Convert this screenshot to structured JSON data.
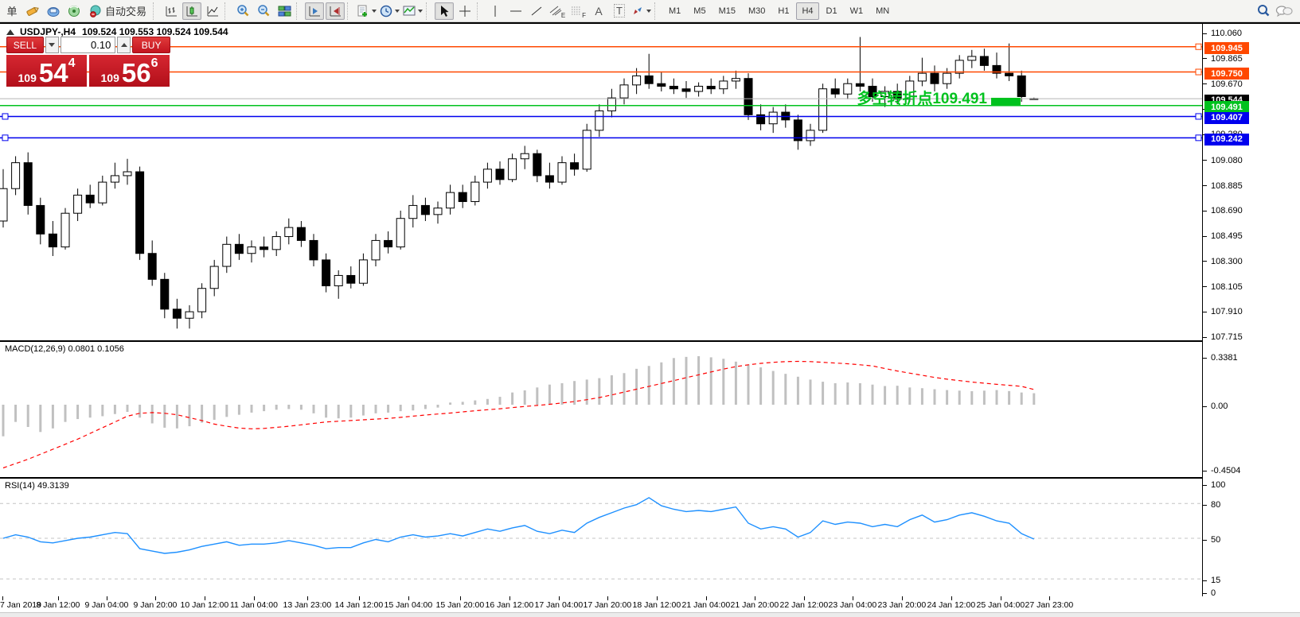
{
  "toolbar": {
    "new_order_partial": "单",
    "autotrading_label": "自动交易",
    "timeframes": [
      "M1",
      "M5",
      "M15",
      "M30",
      "H1",
      "H4",
      "D1",
      "W1",
      "MN"
    ],
    "active_timeframe": "H4",
    "tool_letters": {
      "channel": "E",
      "fibonacci": "F",
      "text": "A",
      "label": "T"
    }
  },
  "chart_header": {
    "symbol_period": "USDJPY-,H4",
    "quote": "109.524 109.553 109.524 109.544"
  },
  "trade_panel": {
    "sell_label": "SELL",
    "buy_label": "BUY",
    "volume": "0.10",
    "sell_price_prefix": "109",
    "sell_price_big": "54",
    "sell_price_sup": "4",
    "buy_price_prefix": "109",
    "buy_price_big": "56",
    "buy_price_sup": "6"
  },
  "annotation": {
    "text": "多空转折点109.491",
    "color": "#00C21E"
  },
  "indicator_labels": {
    "macd": "MACD(12,26,9) 0.0801 0.1056",
    "rsi": "RSI(14) 49.3139"
  },
  "price_axis": {
    "ticks": [
      "110.060",
      "109.865",
      "109.670",
      "109.475",
      "109.280",
      "109.080",
      "108.885",
      "108.690",
      "108.495",
      "108.300",
      "108.105",
      "107.910",
      "107.715"
    ],
    "badges": [
      {
        "label": "109.945",
        "color": "#FF4800"
      },
      {
        "label": "109.750",
        "color": "#FF4800"
      },
      {
        "label": "109.544",
        "color": "#000000"
      },
      {
        "label": "109.491",
        "color": "#00C21E"
      },
      {
        "label": "109.407",
        "color": "#0000EE"
      },
      {
        "label": "109.242",
        "color": "#0000EE"
      }
    ]
  },
  "macd_axis": [
    "0.3381",
    "0.00",
    "-0.4504"
  ],
  "rsi_axis": [
    "100",
    "80",
    "50",
    "15",
    "0"
  ],
  "time_axis": [
    "7 Jan 2019",
    "8 Jan 12:00",
    "9 Jan 04:00",
    "9 Jan 20:00",
    "10 Jan 12:00",
    "11 Jan 04:00",
    "13 Jan 23:00",
    "14 Jan 12:00",
    "15 Jan 04:00",
    "15 Jan 20:00",
    "16 Jan 12:00",
    "17 Jan 04:00",
    "17 Jan 20:00",
    "18 Jan 12:00",
    "21 Jan 04:00",
    "21 Jan 20:00",
    "22 Jan 12:00",
    "23 Jan 04:00",
    "23 Jan 20:00",
    "24 Jan 12:00",
    "25 Jan 04:00",
    "27 Jan 23:00"
  ],
  "chart_data": [
    {
      "type": "candlestick",
      "title": "USDJPY-,H4",
      "ylim": [
        107.715,
        110.06
      ],
      "x_labels": [
        "7 Jan 2019",
        "8 Jan 12:00",
        "9 Jan 04:00",
        "9 Jan 20:00",
        "10 Jan 12:00",
        "11 Jan 04:00",
        "13 Jan 23:00",
        "14 Jan 12:00",
        "15 Jan 04:00",
        "15 Jan 20:00",
        "16 Jan 12:00",
        "17 Jan 04:00",
        "17 Jan 20:00",
        "18 Jan 12:00",
        "21 Jan 04:00",
        "21 Jan 20:00",
        "22 Jan 12:00",
        "23 Jan 04:00",
        "23 Jan 20:00",
        "24 Jan 12:00",
        "25 Jan 04:00",
        "27 Jan 23:00"
      ],
      "ohlc": [
        [
          108.6,
          109.0,
          108.55,
          108.85
        ],
        [
          108.85,
          109.1,
          108.8,
          109.05
        ],
        [
          109.05,
          109.13,
          108.65,
          108.72
        ],
        [
          108.72,
          108.78,
          108.42,
          108.5
        ],
        [
          108.5,
          108.6,
          108.33,
          108.4
        ],
        [
          108.4,
          108.7,
          108.38,
          108.66
        ],
        [
          108.66,
          108.85,
          108.6,
          108.8
        ],
        [
          108.8,
          108.88,
          108.7,
          108.74
        ],
        [
          108.74,
          108.95,
          108.72,
          108.9
        ],
        [
          108.9,
          109.05,
          108.85,
          108.95
        ],
        [
          108.95,
          109.08,
          108.88,
          108.98
        ],
        [
          108.98,
          109.02,
          108.3,
          108.35
        ],
        [
          108.35,
          108.45,
          108.1,
          108.15
        ],
        [
          108.15,
          108.2,
          107.85,
          107.92
        ],
        [
          107.92,
          108.0,
          107.77,
          107.85
        ],
        [
          107.85,
          107.95,
          107.77,
          107.9
        ],
        [
          107.9,
          108.12,
          107.85,
          108.08
        ],
        [
          108.08,
          108.3,
          108.02,
          108.25
        ],
        [
          108.25,
          108.48,
          108.2,
          108.42
        ],
        [
          108.42,
          108.5,
          108.3,
          108.35
        ],
        [
          108.35,
          108.45,
          108.28,
          108.4
        ],
        [
          108.4,
          108.48,
          108.32,
          108.38
        ],
        [
          108.38,
          108.52,
          108.33,
          108.48
        ],
        [
          108.48,
          108.62,
          108.42,
          108.55
        ],
        [
          108.55,
          108.6,
          108.4,
          108.45
        ],
        [
          108.45,
          108.5,
          108.25,
          108.3
        ],
        [
          108.3,
          108.35,
          108.05,
          108.1
        ],
        [
          108.1,
          108.22,
          108.0,
          108.18
        ],
        [
          108.18,
          108.25,
          108.08,
          108.12
        ],
        [
          108.12,
          108.35,
          108.1,
          108.3
        ],
        [
          108.3,
          108.5,
          108.25,
          108.45
        ],
        [
          108.45,
          108.52,
          108.35,
          108.4
        ],
        [
          108.4,
          108.68,
          108.38,
          108.62
        ],
        [
          108.62,
          108.8,
          108.55,
          108.72
        ],
        [
          108.72,
          108.78,
          108.6,
          108.65
        ],
        [
          108.65,
          108.75,
          108.58,
          108.7
        ],
        [
          108.7,
          108.88,
          108.65,
          108.82
        ],
        [
          108.82,
          108.88,
          108.7,
          108.75
        ],
        [
          108.75,
          108.95,
          108.72,
          108.9
        ],
        [
          108.9,
          109.05,
          108.85,
          109.0
        ],
        [
          109.0,
          109.06,
          108.88,
          108.92
        ],
        [
          108.92,
          109.12,
          108.9,
          109.08
        ],
        [
          109.08,
          109.18,
          109.0,
          109.12
        ],
        [
          109.12,
          109.15,
          108.9,
          108.95
        ],
        [
          108.95,
          109.05,
          108.85,
          108.9
        ],
        [
          108.9,
          109.1,
          108.88,
          109.05
        ],
        [
          109.05,
          109.12,
          108.95,
          109.0
        ],
        [
          109.0,
          109.35,
          108.98,
          109.3
        ],
        [
          109.3,
          109.5,
          109.25,
          109.45
        ],
        [
          109.45,
          109.62,
          109.4,
          109.55
        ],
        [
          109.55,
          109.7,
          109.5,
          109.65
        ],
        [
          109.65,
          109.78,
          109.58,
          109.72
        ],
        [
          109.72,
          109.89,
          109.62,
          109.66
        ],
        [
          109.66,
          109.75,
          109.6,
          109.64
        ],
        [
          109.64,
          109.7,
          109.58,
          109.62
        ],
        [
          109.62,
          109.68,
          109.55,
          109.6
        ],
        [
          109.6,
          109.67,
          109.56,
          109.64
        ],
        [
          109.64,
          109.7,
          109.58,
          109.62
        ],
        [
          109.62,
          109.72,
          109.58,
          109.68
        ],
        [
          109.68,
          109.76,
          109.62,
          109.7
        ],
        [
          109.7,
          109.74,
          109.38,
          109.42
        ],
        [
          109.42,
          109.5,
          109.3,
          109.35
        ],
        [
          109.35,
          109.48,
          109.28,
          109.44
        ],
        [
          109.44,
          109.5,
          109.32,
          109.38
        ],
        [
          109.38,
          109.42,
          109.15,
          109.22
        ],
        [
          109.22,
          109.35,
          109.18,
          109.3
        ],
        [
          109.3,
          109.66,
          109.28,
          109.62
        ],
        [
          109.62,
          109.7,
          109.55,
          109.58
        ],
        [
          109.58,
          109.7,
          109.54,
          109.66
        ],
        [
          109.66,
          110.02,
          109.6,
          109.64
        ],
        [
          109.64,
          109.7,
          109.52,
          109.56
        ],
        [
          109.56,
          109.64,
          109.48,
          109.6
        ],
        [
          109.6,
          109.66,
          109.5,
          109.54
        ],
        [
          109.54,
          109.72,
          109.52,
          109.68
        ],
        [
          109.68,
          109.86,
          109.64,
          109.74
        ],
        [
          109.74,
          109.8,
          109.6,
          109.66
        ],
        [
          109.66,
          109.78,
          109.62,
          109.74
        ],
        [
          109.74,
          109.88,
          109.7,
          109.84
        ],
        [
          109.84,
          109.92,
          109.78,
          109.87
        ],
        [
          109.87,
          109.93,
          109.76,
          109.8
        ],
        [
          109.8,
          109.9,
          109.7,
          109.74
        ],
        [
          109.74,
          109.97,
          109.68,
          109.72
        ],
        [
          109.72,
          109.76,
          109.52,
          109.56
        ],
        [
          109.545,
          109.552,
          109.537,
          109.544
        ]
      ],
      "levels": [
        {
          "price": 109.945,
          "color": "#FF4800",
          "style": "solid",
          "object": "horizontal-line"
        },
        {
          "price": 109.75,
          "color": "#FF4800",
          "style": "solid",
          "object": "horizontal-line"
        },
        {
          "price": 109.544,
          "color": "#B4B4B4",
          "style": "solid",
          "object": "current-price-line"
        },
        {
          "price": 109.491,
          "color": "#00C21E",
          "style": "solid",
          "object": "horizontal-line"
        },
        {
          "price": 109.407,
          "color": "#0000EE",
          "style": "solid",
          "object": "horizontal-line"
        },
        {
          "price": 109.242,
          "color": "#0000EE",
          "style": "solid",
          "object": "horizontal-line"
        }
      ],
      "current_price": 109.544
    },
    {
      "type": "bar",
      "name": "MACD(12,26,9)",
      "ylim": [
        -0.4504,
        0.3381
      ],
      "current_macd": 0.0801,
      "current_signal": 0.1056,
      "histogram": [
        -0.22,
        -0.12,
        -0.155,
        -0.19,
        -0.165,
        -0.12,
        -0.1,
        -0.09,
        -0.08,
        -0.065,
        -0.05,
        -0.09,
        -0.13,
        -0.16,
        -0.165,
        -0.15,
        -0.125,
        -0.105,
        -0.085,
        -0.07,
        -0.055,
        -0.045,
        -0.035,
        -0.03,
        -0.035,
        -0.06,
        -0.09,
        -0.095,
        -0.09,
        -0.075,
        -0.06,
        -0.055,
        -0.045,
        -0.04,
        -0.03,
        -0.02,
        0.015,
        0.02,
        0.03,
        0.04,
        0.055,
        0.085,
        0.1,
        0.12,
        0.14,
        0.15,
        0.165,
        0.175,
        0.185,
        0.205,
        0.22,
        0.25,
        0.27,
        0.295,
        0.325,
        0.333,
        0.338,
        0.33,
        0.32,
        0.3,
        0.28,
        0.26,
        0.235,
        0.215,
        0.195,
        0.175,
        0.16,
        0.15,
        0.155,
        0.15,
        0.14,
        0.13,
        0.132,
        0.12,
        0.115,
        0.108,
        0.102,
        0.098,
        0.094,
        0.098,
        0.102,
        0.095,
        0.085,
        0.0801
      ],
      "signal": [
        -0.44,
        -0.41,
        -0.38,
        -0.345,
        -0.31,
        -0.275,
        -0.24,
        -0.2,
        -0.16,
        -0.12,
        -0.08,
        -0.06,
        -0.055,
        -0.06,
        -0.07,
        -0.09,
        -0.11,
        -0.135,
        -0.15,
        -0.163,
        -0.168,
        -0.165,
        -0.158,
        -0.15,
        -0.14,
        -0.13,
        -0.12,
        -0.115,
        -0.11,
        -0.105,
        -0.1,
        -0.095,
        -0.088,
        -0.08,
        -0.072,
        -0.065,
        -0.058,
        -0.05,
        -0.042,
        -0.035,
        -0.028,
        -0.02,
        -0.012,
        -0.005,
        0.003,
        0.012,
        0.022,
        0.035,
        0.05,
        0.068,
        0.088,
        0.108,
        0.128,
        0.148,
        0.168,
        0.188,
        0.208,
        0.228,
        0.248,
        0.265,
        0.278,
        0.288,
        0.295,
        0.3,
        0.302,
        0.3,
        0.295,
        0.29,
        0.285,
        0.278,
        0.27,
        0.252,
        0.235,
        0.22,
        0.205,
        0.19,
        0.178,
        0.168,
        0.158,
        0.15,
        0.142,
        0.135,
        0.128,
        0.106
      ]
    },
    {
      "type": "line",
      "name": "RSI(14)",
      "ylim": [
        0,
        100
      ],
      "levels": [
        80,
        50,
        15
      ],
      "current": 49.3139,
      "values": [
        50,
        53,
        51,
        47,
        46,
        48,
        50,
        51,
        53,
        55,
        54,
        41,
        39,
        37,
        38,
        40,
        43,
        45,
        47,
        44,
        45,
        45,
        46,
        48,
        46,
        44,
        41,
        42,
        42,
        46,
        49,
        47,
        51,
        53,
        51,
        52,
        54,
        52,
        55,
        58,
        56,
        59,
        61,
        56,
        54,
        57,
        55,
        63,
        68,
        72,
        76,
        79,
        85,
        78,
        75,
        73,
        74,
        73,
        75,
        77,
        63,
        58,
        60,
        58,
        51,
        55,
        65,
        62,
        64,
        63,
        60,
        62,
        60,
        66,
        70,
        64,
        66,
        70,
        72,
        69,
        65,
        63,
        54,
        49.31
      ]
    }
  ]
}
